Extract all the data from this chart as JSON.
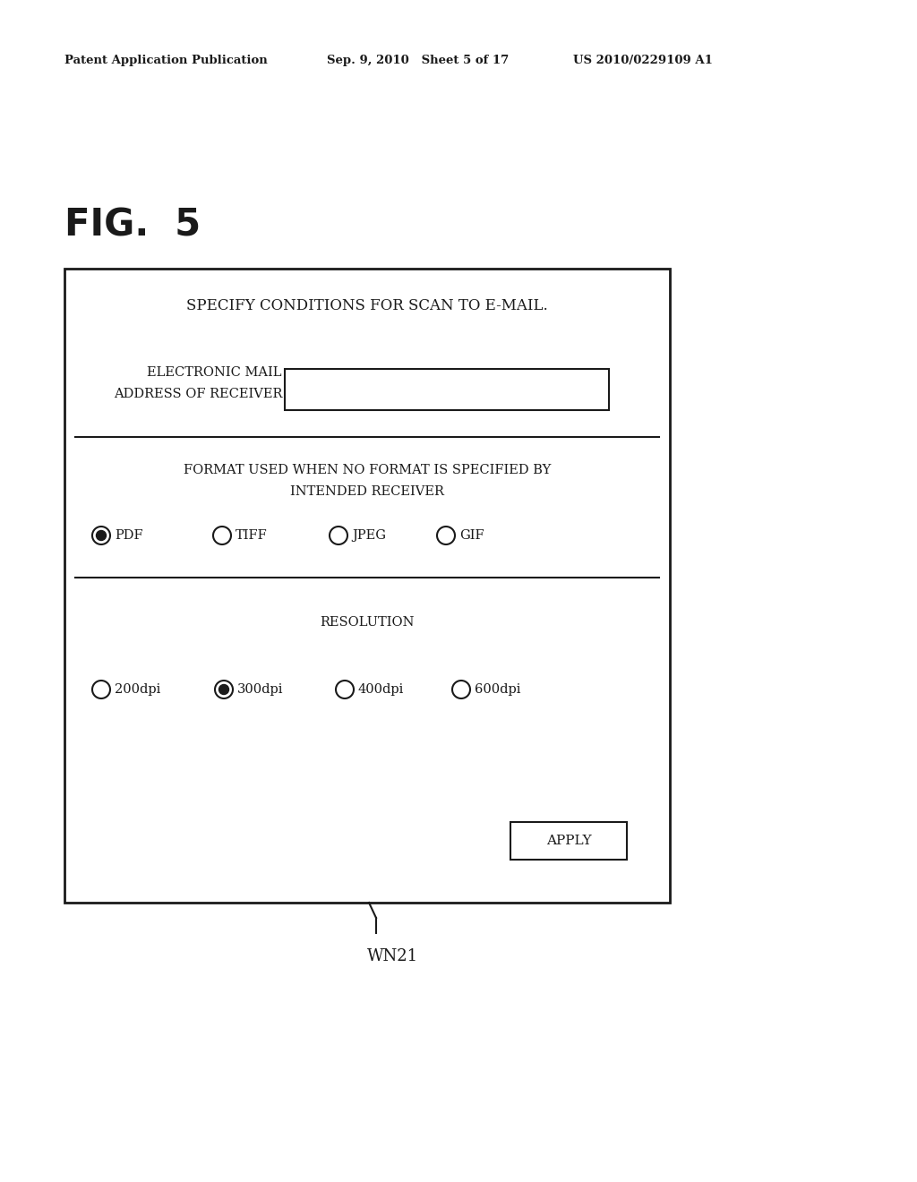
{
  "header_left": "Patent Application Publication",
  "header_mid": "Sep. 9, 2010   Sheet 5 of 17",
  "header_right": "US 2010/0229109 A1",
  "fig_label": "FIG.  5",
  "dialog_title": "SPECIFY CONDITIONS FOR SCAN TO E-MAIL.",
  "email_label_line1": "ELECTRONIC MAIL",
  "email_label_line2": "ADDRESS OF RECEIVER",
  "format_title_line1": "FORMAT USED WHEN NO FORMAT IS SPECIFIED BY",
  "format_title_line2": "INTENDED RECEIVER",
  "format_options": [
    "PDF",
    "TIFF",
    "JPEG",
    "GIF"
  ],
  "format_selected": 0,
  "resolution_title": "RESOLUTION",
  "resolution_options": [
    "200dpi",
    "300dpi",
    "400dpi",
    "600dpi"
  ],
  "resolution_selected": 1,
  "apply_button": "APPLY",
  "wn_label": "WN21",
  "bg_color": "#ffffff",
  "text_color": "#1a1a1a",
  "box_color": "#1a1a1a",
  "header_fontsize": 9.5,
  "fig_fontsize": 30,
  "title_fontsize": 12,
  "label_fontsize": 10.5,
  "radio_fontsize": 10.5,
  "apply_fontsize": 11,
  "wn_fontsize": 13
}
